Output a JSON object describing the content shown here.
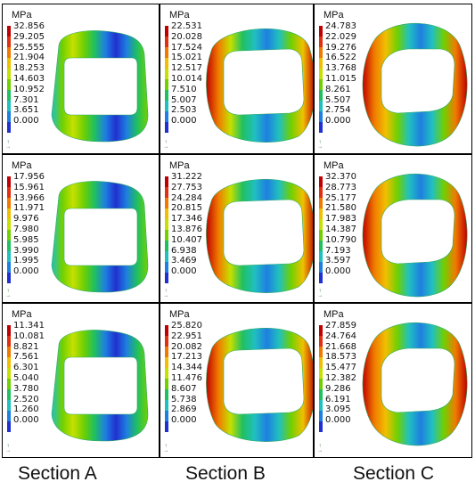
{
  "unit": "MPa",
  "columns": [
    "Section A",
    "Section B",
    "Section C"
  ],
  "legend_colors": [
    "#c00000",
    "#e03010",
    "#f07a00",
    "#f0c000",
    "#c6e000",
    "#70d000",
    "#20c060",
    "#20c0c0",
    "#1e7fe0",
    "#2030d0"
  ],
  "panels": [
    {
      "row": 0,
      "col": 0,
      "shape": "A",
      "ticks": [
        "32.856",
        "29.205",
        "25.555",
        "21.904",
        "18.253",
        "14.603",
        "10.952",
        "7.301",
        "3.651",
        "0.000"
      ]
    },
    {
      "row": 0,
      "col": 1,
      "shape": "B",
      "ticks": [
        "22.531",
        "20.028",
        "17.524",
        "15.021",
        "12.517",
        "10.014",
        "7.510",
        "5.007",
        "2.503",
        "0.000"
      ]
    },
    {
      "row": 0,
      "col": 2,
      "shape": "C",
      "ticks": [
        "24.783",
        "22.029",
        "19.276",
        "16.522",
        "13.768",
        "11.015",
        "8.261",
        "5.507",
        "2.754",
        "0.000"
      ]
    },
    {
      "row": 1,
      "col": 0,
      "shape": "A",
      "ticks": [
        "17.956",
        "15.961",
        "13.966",
        "11.971",
        "9.976",
        "7.980",
        "5.985",
        "3.990",
        "1.995",
        "0.000"
      ]
    },
    {
      "row": 1,
      "col": 1,
      "shape": "B",
      "ticks": [
        "31.222",
        "27.753",
        "24.284",
        "20.815",
        "17.346",
        "13.876",
        "10.407",
        "6.938",
        "3.469",
        "0.000"
      ]
    },
    {
      "row": 1,
      "col": 2,
      "shape": "C",
      "ticks": [
        "32.370",
        "28.773",
        "25.177",
        "21.580",
        "17.983",
        "14.387",
        "10.790",
        "7.193",
        "3.597",
        "0.000"
      ]
    },
    {
      "row": 2,
      "col": 0,
      "shape": "A",
      "ticks": [
        "11.341",
        "10.081",
        "8.821",
        "7.561",
        "6.301",
        "5.040",
        "3.780",
        "2.520",
        "1.260",
        "0.000"
      ]
    },
    {
      "row": 2,
      "col": 1,
      "shape": "B",
      "ticks": [
        "25.820",
        "22.951",
        "20.082",
        "17.213",
        "14.344",
        "11.476",
        "8.607",
        "5.738",
        "2.869",
        "0.000"
      ]
    },
    {
      "row": 2,
      "col": 2,
      "shape": "C",
      "ticks": [
        "27.859",
        "24.764",
        "21.668",
        "18.573",
        "15.477",
        "12.382",
        "9.286",
        "6.191",
        "3.095",
        "0.000"
      ]
    }
  ]
}
